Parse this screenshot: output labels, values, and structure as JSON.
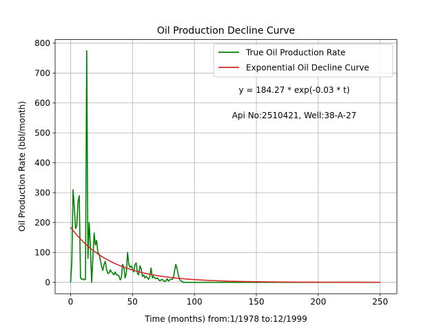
{
  "chart_data": {
    "type": "line",
    "title": "Oil Production Decline Curve",
    "xlabel": "Time (months) from:1/1978 to:12/1999",
    "ylabel": "Oil Production Rate (bbl/month)",
    "xlim": [
      -12.5,
      263.5
    ],
    "ylim": [
      -38,
      812
    ],
    "xticks": [
      0,
      50,
      100,
      150,
      200,
      250
    ],
    "yticks": [
      0,
      100,
      200,
      300,
      400,
      500,
      600,
      700,
      800
    ],
    "grid": true,
    "legend_position": "top-right",
    "annotations": [
      "y = 184.27 * exp(-0.03 * t)",
      "Api No:2510421, Well:38-A-27"
    ],
    "series": [
      {
        "name": "True Oil Production Rate",
        "color": "#008000",
        "x": [
          0,
          1,
          2,
          3,
          4,
          5,
          6,
          7,
          8,
          9,
          10,
          11,
          12,
          13,
          14,
          15,
          16,
          17,
          18,
          19,
          20,
          21,
          22,
          23,
          24,
          25,
          26,
          27,
          28,
          29,
          30,
          31,
          32,
          33,
          34,
          35,
          36,
          37,
          38,
          39,
          40,
          41,
          42,
          43,
          44,
          45,
          46,
          47,
          48,
          49,
          50,
          51,
          52,
          53,
          54,
          55,
          56,
          57,
          58,
          59,
          60,
          61,
          62,
          63,
          64,
          65,
          66,
          67,
          68,
          69,
          70,
          71,
          72,
          73,
          74,
          75,
          76,
          77,
          78,
          79,
          80,
          81,
          82,
          83,
          84,
          85,
          86,
          87,
          88,
          89,
          90,
          91,
          92,
          95,
          100,
          110,
          120,
          130,
          140,
          150,
          200,
          250
        ],
        "y": [
          0,
          70,
          310,
          250,
          180,
          190,
          270,
          290,
          15,
          10,
          12,
          8,
          10,
          775,
          80,
          200,
          120,
          0,
          80,
          165,
          125,
          140,
          100,
          95,
          75,
          55,
          40,
          60,
          70,
          45,
          30,
          30,
          42,
          35,
          30,
          25,
          35,
          25,
          25,
          22,
          8,
          15,
          60,
          50,
          15,
          30,
          100,
          60,
          50,
          55,
          45,
          35,
          60,
          65,
          30,
          25,
          55,
          45,
          20,
          25,
          15,
          20,
          15,
          10,
          20,
          48,
          15,
          20,
          15,
          12,
          15,
          10,
          5,
          8,
          10,
          5,
          3,
          5,
          12,
          4,
          8,
          10,
          10,
          15,
          40,
          60,
          45,
          25,
          10,
          5,
          3,
          0,
          0,
          0,
          0,
          0,
          0,
          0,
          0,
          0,
          0,
          0
        ]
      },
      {
        "name": "Exponential Oil Decline Curve",
        "color": "#d62728",
        "function": "y = 184.27 * exp(-0.03 * t)",
        "a": 184.27,
        "k": 0.03,
        "x_range": [
          0,
          250
        ]
      }
    ]
  }
}
